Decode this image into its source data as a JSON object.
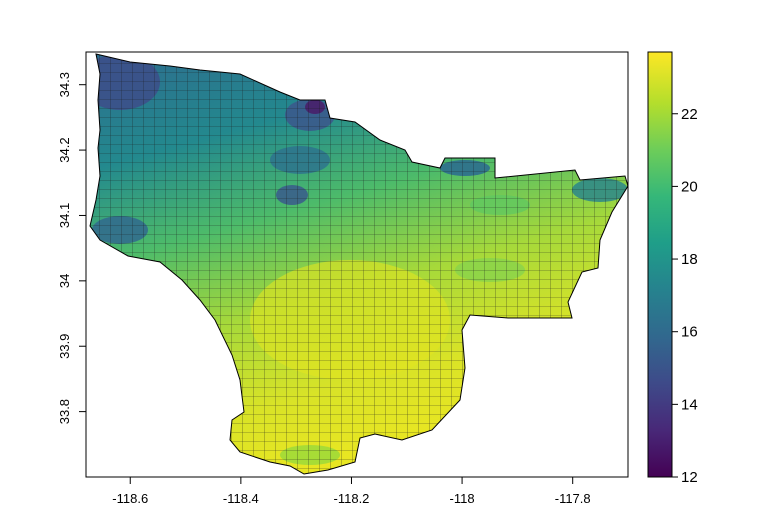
{
  "map": {
    "type": "raster-with-tract-boundaries",
    "x_axis": {
      "ticks": [
        "-118.6",
        "-118.4",
        "-118.2",
        "-118",
        "-117.8"
      ],
      "range": [
        -118.68,
        -117.7
      ]
    },
    "y_axis": {
      "ticks": [
        "33.8",
        "33.9",
        "34",
        "34.1",
        "34.2",
        "34.3"
      ],
      "range": [
        33.7,
        34.35
      ]
    },
    "colorbar": {
      "ticks": [
        "12",
        "14",
        "16",
        "18",
        "20",
        "22"
      ],
      "range": [
        12,
        23.7
      ],
      "palette": [
        "#440154",
        "#482878",
        "#3E4A89",
        "#31688E",
        "#26828E",
        "#1F9E89",
        "#35B779",
        "#6DCD59",
        "#B4DE2C",
        "#FDE725"
      ]
    }
  }
}
